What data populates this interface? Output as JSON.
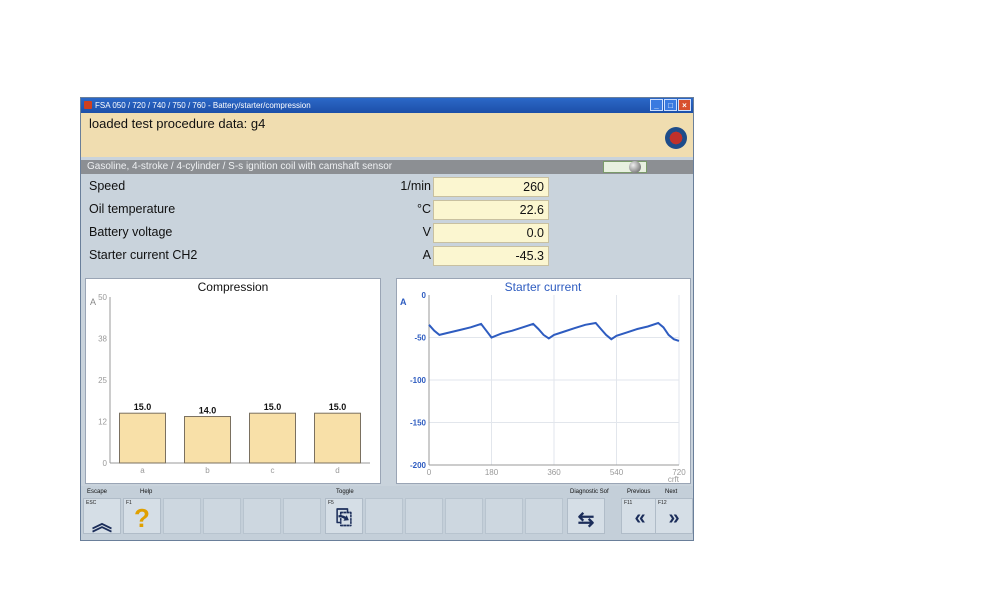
{
  "window": {
    "title": "FSA 050 / 720 / 740 / 750 / 760 - Battery/starter/compression",
    "controls": [
      "_",
      "□",
      "×"
    ]
  },
  "header": {
    "message": "loaded test procedure data: g4"
  },
  "path": "Gasoline, 4-stroke /  4-cylinder / S-s ignition coil with camshaft sensor",
  "measurements": [
    {
      "label": "Speed",
      "unit": "1/min",
      "value": "260"
    },
    {
      "label": "Oil temperature",
      "unit": "°C",
      "value": "22.6"
    },
    {
      "label": "Battery voltage",
      "unit": "V",
      "value": "0.0"
    },
    {
      "label": "Starter current CH2",
      "unit": "A",
      "value": "-45.3"
    }
  ],
  "chart_data": [
    {
      "type": "bar",
      "title": "Compression",
      "ylabel": "A",
      "xlabel": "",
      "categories": [
        "a",
        "b",
        "c",
        "d"
      ],
      "values": [
        15.0,
        14.0,
        15.0,
        15.0
      ],
      "value_labels": [
        "15.0",
        "14.0",
        "15.0",
        "15.0"
      ],
      "yticks": [
        "50",
        "38",
        "25",
        "12",
        "0"
      ],
      "ylim": [
        0,
        50
      ],
      "bar_color": "#f8e0a8",
      "grid": false
    },
    {
      "type": "line",
      "title": "Starter current",
      "ylabel": "A",
      "xlabel": "crft",
      "xticks": [
        "0",
        "180",
        "360",
        "540",
        "720"
      ],
      "yticks": [
        "0",
        "-50",
        "-100",
        "-150",
        "-200"
      ],
      "xlim": [
        0,
        720
      ],
      "ylim": [
        -200,
        0
      ],
      "line_color": "#2e5cc0",
      "grid": true,
      "series": [
        {
          "x": [
            0,
            15,
            30,
            60,
            90,
            120,
            150,
            165,
            180,
            210,
            240,
            270,
            300,
            315,
            330,
            345,
            360,
            390,
            420,
            450,
            480,
            495,
            510,
            525,
            540,
            570,
            600,
            630,
            660,
            675,
            690,
            705,
            720
          ],
          "values": [
            -35,
            -42,
            -47,
            -44,
            -41,
            -38,
            -34,
            -42,
            -50,
            -45,
            -42,
            -38,
            -34,
            -40,
            -47,
            -51,
            -47,
            -43,
            -39,
            -35,
            -33,
            -40,
            -47,
            -52,
            -48,
            -44,
            -40,
            -37,
            -33,
            -38,
            -47,
            -52,
            -54
          ]
        }
      ]
    }
  ],
  "toolbar": {
    "keys": [
      {
        "label": "Escape",
        "key": "ESC",
        "icon": "double-chevron-up-icon",
        "glyph": "︽"
      },
      {
        "label": "Help",
        "key": "F1",
        "icon": "help-question-icon",
        "glyph": "?"
      },
      {
        "label": "Toggle",
        "key": "F5",
        "icon": "toggle-document-icon",
        "glyph": "⎘"
      },
      {
        "label": "Diagnostic Sof",
        "key": "",
        "icon": "diagnostic-software-icon",
        "glyph": "⇆"
      },
      {
        "label": "Previous",
        "key": "F11",
        "icon": "double-chevron-left-icon",
        "glyph": "«"
      },
      {
        "label": "Next",
        "key": "F12",
        "icon": "double-chevron-right-icon",
        "glyph": "»"
      }
    ]
  }
}
